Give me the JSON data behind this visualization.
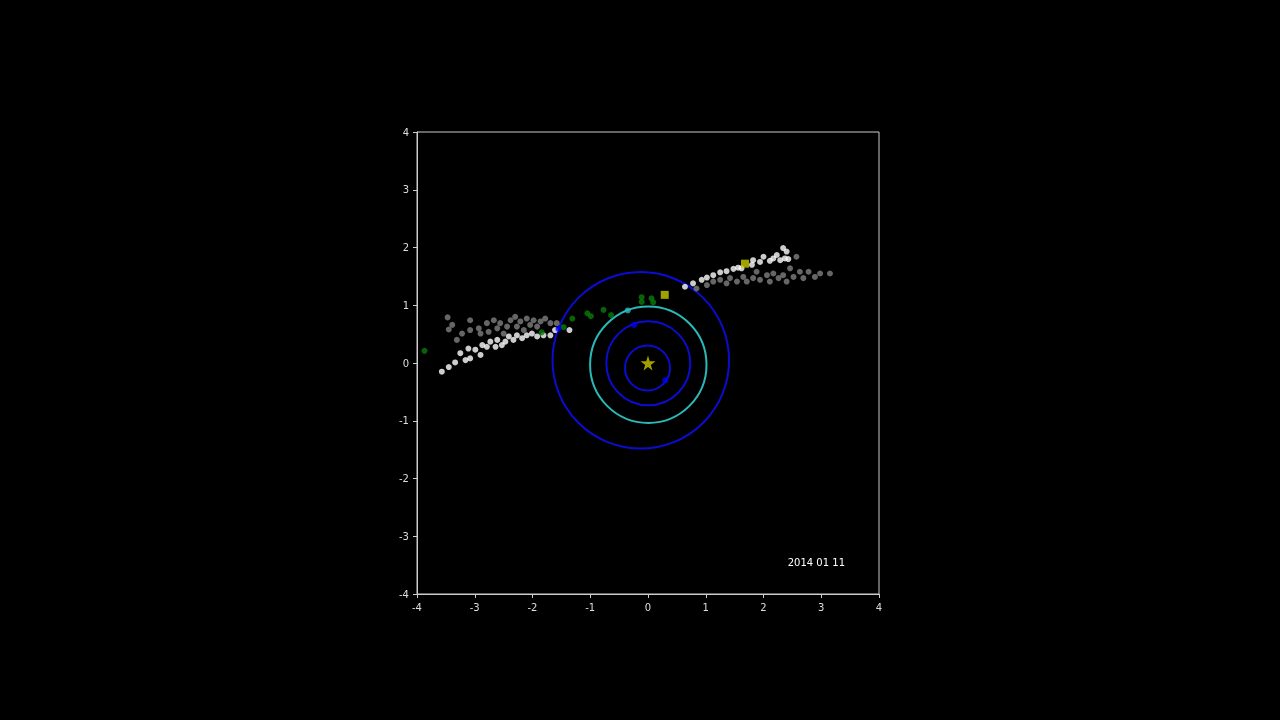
{
  "chart_data": {
    "type": "scatter",
    "xlim": [
      -4,
      4
    ],
    "ylim": [
      -4,
      4
    ],
    "xticks": [
      -4,
      -3,
      -2,
      -1,
      0,
      1,
      2,
      3,
      4
    ],
    "yticks": [
      -4,
      -3,
      -2,
      -1,
      0,
      1,
      2,
      3,
      4
    ],
    "annotations": [
      "2014 01 11"
    ],
    "series": [
      {
        "marker": "circle",
        "color": "#808080",
        "x": [
          -3.47,
          -3.39,
          -3.45,
          -3.31,
          -3.22,
          -3.08,
          -3.08,
          -2.93,
          -2.9,
          -2.79,
          -2.76,
          -2.67,
          -2.61,
          -2.56,
          -2.5,
          -2.44,
          -2.38,
          -2.3,
          -2.27,
          -2.21,
          -2.15,
          -2.1,
          -2.04,
          -1.98,
          -1.92,
          -1.86,
          -1.78,
          -1.69,
          -1.58,
          0.84,
          1.02,
          1.13,
          1.25,
          1.36,
          1.42,
          1.54,
          1.65,
          1.71,
          1.82,
          1.88,
          1.94,
          2.06,
          2.11,
          2.17,
          2.26,
          2.34,
          2.4,
          2.46,
          2.52,
          2.57,
          2.63,
          2.69,
          2.78,
          2.89,
          2.98,
          3.15
        ],
        "values": [
          0.79,
          0.66,
          0.58,
          0.4,
          0.51,
          0.74,
          0.57,
          0.6,
          0.51,
          0.69,
          0.54,
          0.74,
          0.6,
          0.69,
          0.51,
          0.63,
          0.74,
          0.8,
          0.63,
          0.72,
          0.57,
          0.77,
          0.66,
          0.74,
          0.63,
          0.72,
          0.77,
          0.69,
          0.69,
          1.29,
          1.35,
          1.41,
          1.44,
          1.38,
          1.47,
          1.41,
          1.49,
          1.41,
          1.47,
          1.58,
          1.44,
          1.52,
          1.41,
          1.55,
          1.47,
          1.52,
          1.41,
          1.64,
          1.49,
          1.84,
          1.58,
          1.47,
          1.58,
          1.49,
          1.55,
          1.55
        ]
      },
      {
        "marker": "circle",
        "color": "#ffffff",
        "x": [
          -3.57,
          -3.45,
          -3.34,
          -3.25,
          -3.16,
          -3.08,
          -3.11,
          -2.99,
          -2.9,
          -2.87,
          -2.79,
          -2.73,
          -2.64,
          -2.61,
          -2.53,
          -2.47,
          -2.41,
          -2.33,
          -2.27,
          -2.18,
          -2.1,
          -2.01,
          -1.92,
          -1.81,
          -1.69,
          -1.61,
          -1.36,
          0.64,
          0.78,
          0.93,
          1.02,
          1.13,
          1.25,
          1.36,
          1.48,
          1.56,
          1.62,
          1.8,
          1.82,
          1.94,
          2,
          2.11,
          2.17,
          2.23,
          2.29,
          2.34,
          2.4,
          2.37,
          2.43
        ],
        "values": [
          -0.15,
          -0.07,
          0.01,
          0.17,
          0.05,
          0.08,
          0.25,
          0.23,
          0.14,
          0.31,
          0.28,
          0.37,
          0.28,
          0.4,
          0.31,
          0.37,
          0.46,
          0.4,
          0.48,
          0.43,
          0.48,
          0.51,
          0.46,
          0.48,
          0.48,
          0.57,
          0.57,
          1.32,
          1.38,
          1.44,
          1.48,
          1.52,
          1.57,
          1.59,
          1.63,
          1.65,
          1.64,
          1.7,
          1.78,
          1.75,
          1.84,
          1.77,
          1.81,
          1.87,
          1.78,
          1.99,
          1.93,
          1.81,
          1.8
        ]
      },
      {
        "type": "scatter",
        "marker": "circle",
        "color": "#0a7a0a",
        "x": [
          -3.87,
          -1.84,
          -1.46,
          -1.31,
          -1.05,
          -0.99,
          -0.77,
          -0.64,
          -0.11,
          -0.11,
          0.06,
          0.09
        ],
        "values": [
          0.21,
          0.53,
          0.62,
          0.77,
          0.86,
          0.81,
          0.92,
          0.83,
          1.14,
          1.06,
          1.12,
          1.05
        ]
      },
      {
        "type": "scatter",
        "marker": "square",
        "color": "#c8c800",
        "x": [
          0.29,
          1.68
        ],
        "values": [
          1.18,
          1.72
        ]
      },
      {
        "type": "scatter",
        "marker": "star",
        "color": "#c8c800",
        "x": [
          0
        ],
        "values": [
          0
        ]
      },
      {
        "type": "scatter",
        "marker": "circle",
        "color": "#0000ff",
        "x": [
          0.3,
          -0.24,
          -1.55
        ],
        "values": [
          -0.3,
          0.66,
          0.59
        ]
      },
      {
        "type": "scatter",
        "marker": "circle",
        "color": "#2ab8b8",
        "x": [
          -0.35
        ],
        "values": [
          0.91
        ]
      }
    ]
  }
}
